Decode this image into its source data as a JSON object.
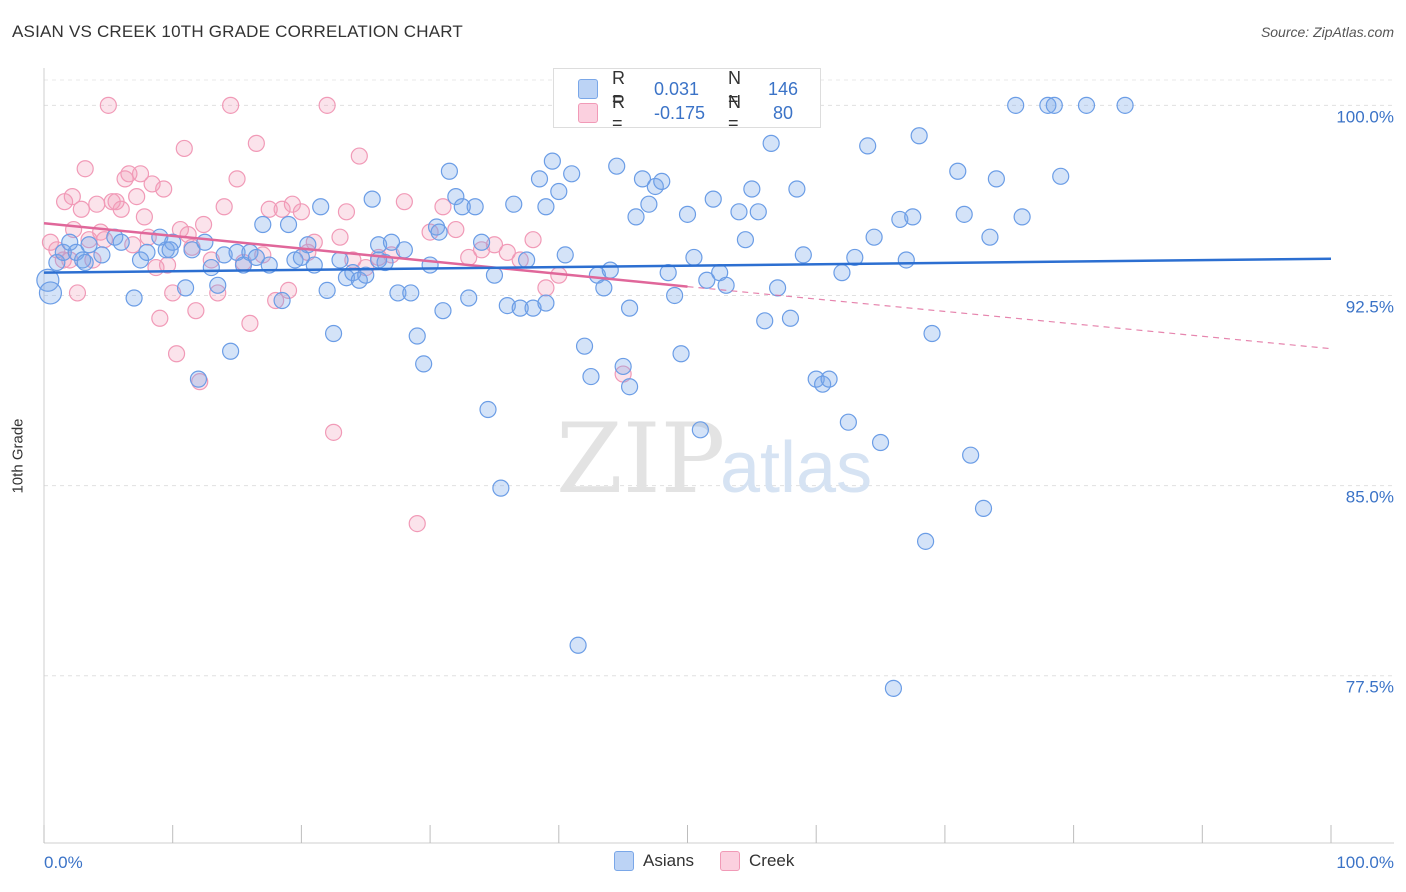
{
  "header": {
    "title": "ASIAN VS CREEK 10TH GRADE CORRELATION CHART",
    "source": "Source: ZipAtlas.com"
  },
  "watermark": {
    "zip": "ZIP",
    "atlas": "atlas"
  },
  "legend_top": {
    "rows": [
      {
        "r_label": "R =",
        "r_value": "0.031",
        "n_label": "N =",
        "n_value": "146",
        "color": "#7aa7e8"
      },
      {
        "r_label": "R =",
        "r_value": "-0.175",
        "n_label": "N =",
        "n_value": " 80",
        "color": "#f19ab7"
      }
    ]
  },
  "legend_bottom": [
    {
      "label": "Asians",
      "color": "#7aa7e8"
    },
    {
      "label": "Creek",
      "color": "#f19ab7"
    }
  ],
  "chart_data": {
    "type": "scatter",
    "title": "ASIAN VS CREEK 10TH GRADE CORRELATION CHART",
    "xlabel": "",
    "ylabel": "10th Grade",
    "xlim": [
      0,
      100
    ],
    "ylim": [
      70.9,
      101.0
    ],
    "x_tick_labels": [
      "0.0%",
      "100.0%"
    ],
    "y_ticks": [
      100.0,
      92.5,
      85.0,
      77.5
    ],
    "y_tick_labels": [
      "100.0%",
      "92.5%",
      "85.0%",
      "77.5%"
    ],
    "grid": true,
    "legend_position": "top-center",
    "series": [
      {
        "name": "Asians",
        "color": "#7aa7e8",
        "line_color": "#2c6fd1",
        "trend": {
          "x": [
            0,
            100
          ],
          "y": [
            93.4,
            93.95
          ]
        },
        "points": [
          [
            0.3,
            93.1
          ],
          [
            0.5,
            92.6
          ],
          [
            1,
            93.8
          ],
          [
            1.5,
            94.2
          ],
          [
            2,
            94.6
          ],
          [
            2.5,
            94.2
          ],
          [
            3,
            93.9
          ],
          [
            3.5,
            94.5
          ],
          [
            4.5,
            94.1
          ],
          [
            5.5,
            94.8
          ],
          [
            6,
            94.6
          ],
          [
            7,
            92.4
          ],
          [
            7.5,
            93.9
          ],
          [
            8,
            94.2
          ],
          [
            9,
            94.8
          ],
          [
            9.5,
            94.3
          ],
          [
            10,
            94.6
          ],
          [
            11,
            92.8
          ],
          [
            11.5,
            94.3
          ],
          [
            12,
            89.2
          ],
          [
            12.5,
            94.6
          ],
          [
            13,
            93.6
          ],
          [
            13.5,
            92.9
          ],
          [
            14,
            94.1
          ],
          [
            14.5,
            90.3
          ],
          [
            15,
            94.2
          ],
          [
            15.5,
            93.7
          ],
          [
            16,
            94.2
          ],
          [
            17,
            95.3
          ],
          [
            17.5,
            93.7
          ],
          [
            18.5,
            92.3
          ],
          [
            19,
            95.3
          ],
          [
            19.5,
            93.9
          ],
          [
            20.5,
            94.5
          ],
          [
            21,
            93.7
          ],
          [
            21.5,
            96.0
          ],
          [
            22,
            92.7
          ],
          [
            22.5,
            91.0
          ],
          [
            23,
            93.9
          ],
          [
            23.5,
            93.2
          ],
          [
            24,
            93.4
          ],
          [
            24.5,
            93.1
          ],
          [
            25,
            93.3
          ],
          [
            25.5,
            96.3
          ],
          [
            26,
            94.5
          ],
          [
            26.5,
            93.8
          ],
          [
            27,
            94.6
          ],
          [
            27.5,
            92.6
          ],
          [
            28,
            94.3
          ],
          [
            28.5,
            92.6
          ],
          [
            29,
            90.9
          ],
          [
            29.5,
            89.8
          ],
          [
            30,
            93.7
          ],
          [
            30.5,
            95.2
          ],
          [
            31,
            91.9
          ],
          [
            31.5,
            97.4
          ],
          [
            32,
            96.4
          ],
          [
            32.5,
            96.0
          ],
          [
            33,
            92.4
          ],
          [
            33.5,
            96.0
          ],
          [
            34,
            94.6
          ],
          [
            34.5,
            88.0
          ],
          [
            35,
            93.3
          ],
          [
            35.5,
            84.9
          ],
          [
            36,
            92.1
          ],
          [
            36.5,
            96.1
          ],
          [
            37,
            92.0
          ],
          [
            37.5,
            93.9
          ],
          [
            38,
            92.0
          ],
          [
            38.5,
            97.1
          ],
          [
            39,
            96.0
          ],
          [
            39.5,
            97.8
          ],
          [
            40,
            96.6
          ],
          [
            40.5,
            94.1
          ],
          [
            41,
            97.3
          ],
          [
            41.5,
            78.7
          ],
          [
            42,
            90.5
          ],
          [
            42.5,
            89.3
          ],
          [
            43,
            93.3
          ],
          [
            43.5,
            92.8
          ],
          [
            44,
            93.5
          ],
          [
            44.5,
            97.6
          ],
          [
            45,
            89.7
          ],
          [
            45.5,
            92.0
          ],
          [
            46,
            95.6
          ],
          [
            46.5,
            97.1
          ],
          [
            47,
            96.1
          ],
          [
            47.5,
            96.8
          ],
          [
            48,
            97.0
          ],
          [
            48.5,
            93.4
          ],
          [
            49,
            92.5
          ],
          [
            49.5,
            90.2
          ],
          [
            50,
            95.7
          ],
          [
            50.5,
            94.0
          ],
          [
            51,
            87.2
          ],
          [
            51.5,
            93.1
          ],
          [
            52,
            96.3
          ],
          [
            52.5,
            93.4
          ],
          [
            53,
            92.9
          ],
          [
            54,
            95.8
          ],
          [
            54.5,
            94.7
          ],
          [
            55,
            96.7
          ],
          [
            55.5,
            95.8
          ],
          [
            56,
            91.5
          ],
          [
            56.5,
            98.5
          ],
          [
            57,
            92.8
          ],
          [
            58,
            91.6
          ],
          [
            58.5,
            96.7
          ],
          [
            59,
            94.1
          ],
          [
            60,
            89.2
          ],
          [
            60.5,
            89.0
          ],
          [
            61,
            89.2
          ],
          [
            62,
            93.4
          ],
          [
            62.5,
            87.5
          ],
          [
            63,
            94.0
          ],
          [
            64,
            98.4
          ],
          [
            64.5,
            94.8
          ],
          [
            65,
            86.7
          ],
          [
            66,
            77.0
          ],
          [
            66.5,
            95.5
          ],
          [
            67,
            93.9
          ],
          [
            68,
            98.8
          ],
          [
            68.5,
            82.8
          ],
          [
            69,
            91.0
          ],
          [
            71,
            97.4
          ],
          [
            71.5,
            95.7
          ],
          [
            72,
            86.2
          ],
          [
            73,
            84.1
          ],
          [
            73.5,
            94.8
          ],
          [
            74,
            97.1
          ],
          [
            75.5,
            100.0
          ],
          [
            76,
            95.6
          ],
          [
            78,
            100.0
          ],
          [
            78.5,
            100.0
          ],
          [
            79,
            97.2
          ],
          [
            81,
            100.0
          ],
          [
            84,
            100.0
          ],
          [
            67.5,
            95.6
          ],
          [
            45.5,
            88.9
          ],
          [
            39.0,
            92.2
          ],
          [
            20.0,
            94.0
          ],
          [
            9.8,
            94.3
          ],
          [
            3.2,
            93.8
          ],
          [
            16.5,
            94.0
          ],
          [
            26.0,
            93.9
          ],
          [
            30.7,
            95.0
          ]
        ]
      },
      {
        "name": "Creek",
        "color": "#f19ab7",
        "line_color": "#e0679a",
        "trend": {
          "x": [
            0,
            50
          ],
          "y": [
            95.35,
            92.85
          ]
        },
        "trend_dashed": {
          "x": [
            50,
            100
          ],
          "y": [
            92.85,
            90.4
          ]
        },
        "points": [
          [
            0.5,
            94.6
          ],
          [
            1,
            94.3
          ],
          [
            1.5,
            93.9
          ],
          [
            1.6,
            96.2
          ],
          [
            2,
            93.9
          ],
          [
            2.3,
            95.1
          ],
          [
            2.6,
            92.6
          ],
          [
            2.9,
            95.9
          ],
          [
            3.2,
            97.5
          ],
          [
            3.5,
            94.7
          ],
          [
            3.8,
            93.9
          ],
          [
            4.1,
            96.1
          ],
          [
            4.4,
            95.0
          ],
          [
            4.7,
            94.7
          ],
          [
            5,
            100.0
          ],
          [
            5.3,
            96.2
          ],
          [
            5.6,
            96.2
          ],
          [
            6,
            95.9
          ],
          [
            6.3,
            97.1
          ],
          [
            6.6,
            97.3
          ],
          [
            6.9,
            94.5
          ],
          [
            7.2,
            96.4
          ],
          [
            7.5,
            97.3
          ],
          [
            7.8,
            95.6
          ],
          [
            8.1,
            94.8
          ],
          [
            8.4,
            96.9
          ],
          [
            8.7,
            93.6
          ],
          [
            9,
            91.6
          ],
          [
            9.3,
            96.7
          ],
          [
            9.6,
            93.7
          ],
          [
            10,
            92.6
          ],
          [
            10.3,
            90.2
          ],
          [
            10.6,
            95.1
          ],
          [
            10.9,
            98.3
          ],
          [
            11.2,
            94.9
          ],
          [
            11.5,
            94.4
          ],
          [
            11.8,
            91.9
          ],
          [
            12.1,
            89.1
          ],
          [
            12.4,
            95.3
          ],
          [
            13,
            93.9
          ],
          [
            13.5,
            92.6
          ],
          [
            14,
            96.0
          ],
          [
            14.5,
            100.0
          ],
          [
            15,
            97.1
          ],
          [
            15.5,
            93.8
          ],
          [
            16,
            91.4
          ],
          [
            16.5,
            98.5
          ],
          [
            17,
            94.1
          ],
          [
            17.5,
            95.9
          ],
          [
            18,
            92.3
          ],
          [
            18.5,
            95.9
          ],
          [
            19,
            92.7
          ],
          [
            19.3,
            96.1
          ],
          [
            20,
            95.8
          ],
          [
            20.5,
            94.2
          ],
          [
            21,
            94.6
          ],
          [
            22,
            100.0
          ],
          [
            22.5,
            87.1
          ],
          [
            23,
            94.8
          ],
          [
            23.5,
            95.8
          ],
          [
            24,
            93.9
          ],
          [
            24.5,
            98.0
          ],
          [
            25,
            93.6
          ],
          [
            26,
            94.0
          ],
          [
            27,
            94.1
          ],
          [
            28,
            96.2
          ],
          [
            29,
            83.5
          ],
          [
            30,
            95.0
          ],
          [
            31,
            96.0
          ],
          [
            32,
            95.1
          ],
          [
            33,
            94.0
          ],
          [
            34,
            94.3
          ],
          [
            35,
            94.5
          ],
          [
            36,
            94.2
          ],
          [
            37,
            93.9
          ],
          [
            38,
            94.7
          ],
          [
            39,
            92.8
          ],
          [
            40,
            93.3
          ],
          [
            45,
            89.4
          ],
          [
            2.2,
            96.4
          ]
        ]
      }
    ]
  }
}
